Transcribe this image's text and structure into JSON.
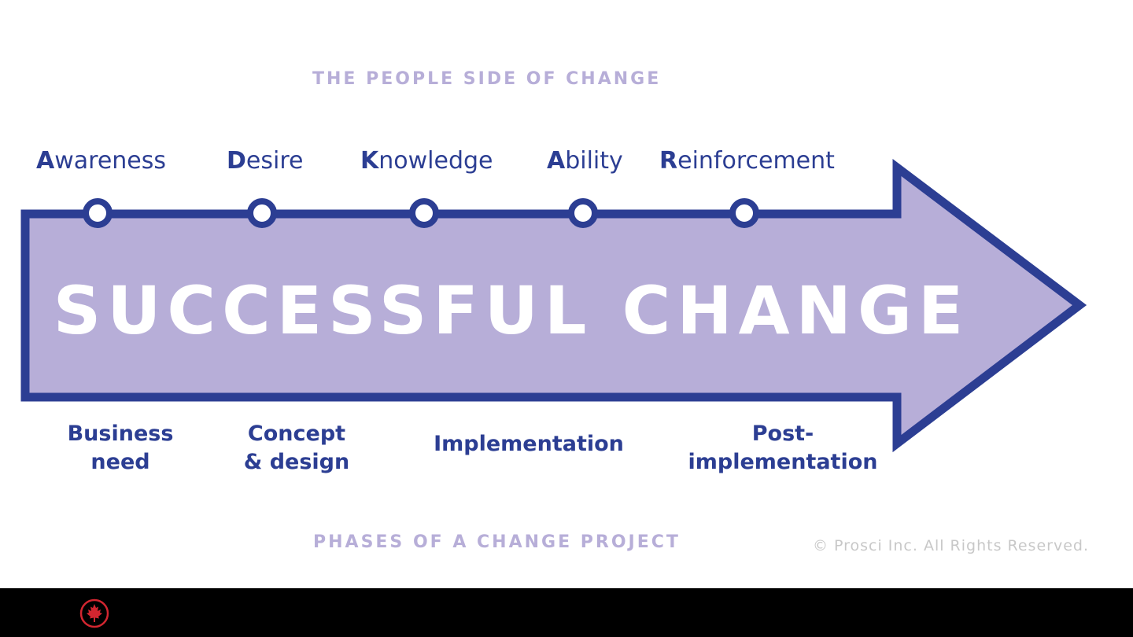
{
  "header": {
    "title": "THE PEOPLE SIDE OF CHANGE"
  },
  "adkar": [
    {
      "initial": "A",
      "rest": "wareness"
    },
    {
      "initial": "D",
      "rest": "esire"
    },
    {
      "initial": "K",
      "rest": "nowledge"
    },
    {
      "initial": "A",
      "rest": "bility"
    },
    {
      "initial": "R",
      "rest": "einforcement"
    }
  ],
  "arrow": {
    "label": "SUCCESSFUL CHANGE"
  },
  "phases": [
    {
      "text": "Business\nneed"
    },
    {
      "text": "Concept\n& design"
    },
    {
      "text": "Implementation"
    },
    {
      "text": "Post-\nimplementation"
    }
  ],
  "footer": {
    "title": "PHASES OF A CHANGE PROJECT",
    "copyright": "© Prosci Inc. All Rights Reserved."
  },
  "colors": {
    "arrow_fill": "#b7aed8",
    "arrow_stroke": "#2c3e93",
    "label_text": "#2c3e93",
    "caption_text": "#b7aed8",
    "footer_bar": "#000000",
    "logo_red": "#d22630"
  },
  "icons": {
    "logo": "maple-leaf-roundel-icon"
  }
}
